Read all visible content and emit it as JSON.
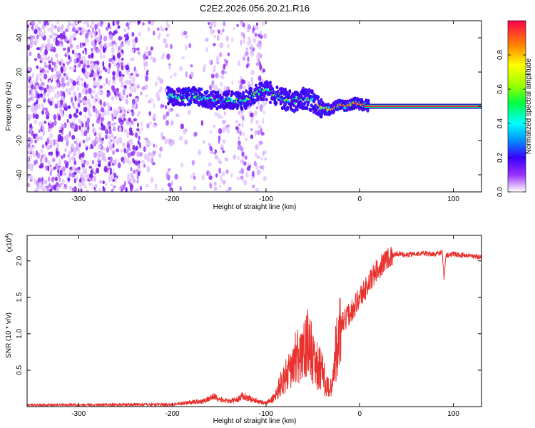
{
  "title": "C2E2.2026.056.20.21.R16",
  "chart_data": [
    {
      "type": "heatmap",
      "xlabel": "Height of straight line (km)",
      "ylabel": "Frequency (Hz)",
      "xlim": [
        -355,
        130
      ],
      "ylim": [
        -50,
        50
      ],
      "xticks": [
        -300,
        -200,
        -100,
        0,
        100
      ],
      "yticks": [
        -40,
        -20,
        0,
        20,
        40
      ],
      "noise_region_km": [
        -355,
        -100
      ],
      "signal_trace": {
        "x": [
          -205,
          -190,
          -175,
          -160,
          -150,
          -140,
          -130,
          -120,
          -110,
          -100,
          -90,
          -80,
          -70,
          -60,
          -50,
          -42,
          -36,
          -30,
          -25,
          -20,
          -15,
          -10,
          -5,
          0,
          5,
          10,
          130
        ],
        "y": [
          6,
          5,
          6,
          4,
          3,
          4,
          3,
          4,
          8,
          9,
          7,
          4,
          3,
          5,
          3,
          0,
          -2,
          -2,
          0,
          1,
          0,
          1,
          2,
          1,
          1,
          0,
          0
        ]
      },
      "colorbar": {
        "label": "Normalized spectral amplitude",
        "ticks": [
          "0.0",
          "0.2",
          "0.4",
          "0.6",
          "0.8"
        ],
        "range": [
          0,
          1
        ]
      }
    },
    {
      "type": "line",
      "xlabel": "Height of straight line (km)",
      "ylabel": "SNR (10 * v/v)",
      "scale_label": "(x10",
      "scale_exp": "4",
      "scale_close": ")",
      "xlim": [
        -355,
        130
      ],
      "ylim": [
        0,
        23500
      ],
      "xticks": [
        -300,
        -200,
        -100,
        0,
        100
      ],
      "ytick_values": [
        5000,
        10000,
        15000,
        20000
      ],
      "ytick_labels": [
        "0.5",
        "1.0",
        "1.5",
        "2.0"
      ],
      "color": "#e8322f",
      "series_envelope": {
        "x": [
          -355,
          -200,
          -165,
          -160,
          -155,
          -150,
          -140,
          -130,
          -125,
          -120,
          -110,
          -100,
          -95,
          -90,
          -85,
          -80,
          -70,
          -60,
          -55,
          -50,
          -45,
          -40,
          -35,
          -30,
          -25,
          -20,
          -15,
          -10,
          -5,
          0,
          5,
          10,
          15,
          20,
          30,
          40,
          50,
          60,
          70,
          80,
          88,
          90,
          92,
          100,
          110,
          120,
          130
        ],
        "y": [
          200,
          300,
          800,
          1200,
          1400,
          1000,
          700,
          1000,
          1500,
          1200,
          800,
          500,
          800,
          1500,
          3000,
          4000,
          5500,
          7000,
          9000,
          6000,
          5000,
          4000,
          2500,
          2200,
          8000,
          11000,
          12000,
          13000,
          14000,
          15000,
          16000,
          17000,
          18000,
          19000,
          20500,
          21000,
          20800,
          21000,
          21000,
          20900,
          21200,
          17500,
          20800,
          20900,
          20800,
          20700,
          20500
        ]
      }
    }
  ]
}
